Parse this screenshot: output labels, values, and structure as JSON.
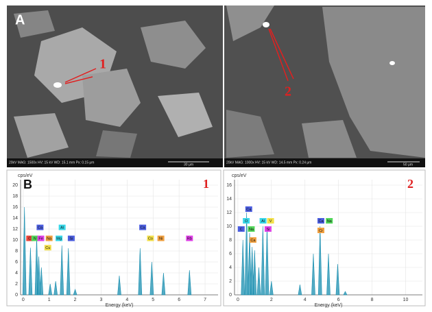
{
  "images": [
    {
      "label": "A",
      "marker": "1",
      "info": "20kV  MAG: 1500x  HV: 15 kV  WD: 15.1 mm  Px: 0.15 μm",
      "scale": "30 μm"
    },
    {
      "marker": "2",
      "info": "20kV  MAG: 1000x  HV: 15 kV  WD: 14.5 mm  Px: 0.24 μm",
      "scale": "50 μm"
    }
  ],
  "chart_data": [
    {
      "type": "spectrum",
      "panel_label": "B",
      "title": "1",
      "ylabel": "cps/eV",
      "xlabel": "Energy (keV)",
      "color": "#1a8fb0",
      "grid": true,
      "x": [
        0.05,
        0.28,
        0.52,
        0.6,
        0.7,
        1.04,
        1.25,
        1.49,
        1.74,
        2.0,
        3.7,
        4.5,
        4.95,
        5.4,
        6.4
      ],
      "values": [
        16,
        8.6,
        10.5,
        7,
        5,
        2,
        2.5,
        9,
        8.5,
        1,
        3.5,
        8.5,
        6,
        4,
        4.5
      ],
      "xlim": [
        -0.1,
        7.5
      ],
      "ylim": [
        0,
        21
      ],
      "xticks": [
        0,
        1,
        2,
        3,
        4,
        5,
        6,
        7
      ],
      "yticks": [
        0,
        2,
        4,
        6,
        8,
        10,
        12,
        14,
        16,
        18,
        20
      ],
      "annotations": [
        {
          "text": "Ca",
          "x": 0.65,
          "y": 12.3,
          "color": "#4b5ee0"
        },
        {
          "text": "Al",
          "x": 1.5,
          "y": 12.3,
          "color": "#38d7e8"
        },
        {
          "text": "Ca",
          "x": 4.6,
          "y": 12.3,
          "color": "#4b5ee0"
        },
        {
          "text": "C",
          "x": 0.25,
          "y": 10.3,
          "color": "#e8463c"
        },
        {
          "text": "N",
          "x": 0.45,
          "y": 10.3,
          "color": "#52d65a"
        },
        {
          "text": "Fe",
          "x": 0.68,
          "y": 10.3,
          "color": "#e040e8"
        },
        {
          "text": "Na",
          "x": 1.0,
          "y": 10.3,
          "color": "#f0a040"
        },
        {
          "text": "Mg",
          "x": 1.38,
          "y": 10.3,
          "color": "#38d7e8"
        },
        {
          "text": "Si",
          "x": 1.85,
          "y": 10.3,
          "color": "#4b5ee0"
        },
        {
          "text": "Cu",
          "x": 0.95,
          "y": 8.6,
          "color": "#f3e04a"
        },
        {
          "text": "Co",
          "x": 4.9,
          "y": 10.3,
          "color": "#f3e04a"
        },
        {
          "text": "Ni",
          "x": 5.3,
          "y": 10.3,
          "color": "#f0a040"
        },
        {
          "text": "Rb",
          "x": 6.4,
          "y": 10.3,
          "color": "#e040e8"
        }
      ]
    },
    {
      "type": "spectrum",
      "title": "2",
      "ylabel": "cps/eV",
      "xlabel": "Energy (keV)",
      "color": "#1a8fb0",
      "grid": true,
      "x": [
        0.3,
        0.52,
        0.7,
        0.85,
        1.0,
        1.25,
        1.49,
        1.74,
        2.0,
        3.7,
        4.5,
        4.9,
        5.4,
        5.95,
        6.4
      ],
      "values": [
        8,
        12,
        9,
        7,
        6.5,
        4,
        10,
        10,
        2,
        1.5,
        6,
        10,
        6,
        4.5,
        0.5
      ],
      "xlim": [
        -0.2,
        11
      ],
      "ylim": [
        0,
        16.8
      ],
      "xticks": [
        0,
        2,
        4,
        6,
        8,
        10
      ],
      "yticks": [
        0,
        2,
        4,
        6,
        8,
        10,
        12,
        14,
        16
      ],
      "annotations": [
        {
          "text": "Ca",
          "x": 0.65,
          "y": 12.5,
          "color": "#4b5ee0"
        },
        {
          "text": "O",
          "x": 0.5,
          "y": 10.8,
          "color": "#38d7e8"
        },
        {
          "text": "Al",
          "x": 1.5,
          "y": 10.8,
          "color": "#38d7e8"
        },
        {
          "text": "V",
          "x": 1.95,
          "y": 10.8,
          "color": "#f3e04a"
        },
        {
          "text": "Ca",
          "x": 4.95,
          "y": 10.8,
          "color": "#4b5ee0"
        },
        {
          "text": "Na",
          "x": 5.45,
          "y": 10.8,
          "color": "#52d65a"
        },
        {
          "text": "C",
          "x": 0.2,
          "y": 9.6,
          "color": "#4b5ee0"
        },
        {
          "text": "Na",
          "x": 0.8,
          "y": 9.6,
          "color": "#52d65a"
        },
        {
          "text": "Si",
          "x": 1.8,
          "y": 9.6,
          "color": "#e040e8"
        },
        {
          "text": "Cr",
          "x": 4.95,
          "y": 9.4,
          "color": "#f0a040"
        },
        {
          "text": "Ca",
          "x": 0.9,
          "y": 8.0,
          "color": "#f0a040"
        }
      ]
    }
  ]
}
